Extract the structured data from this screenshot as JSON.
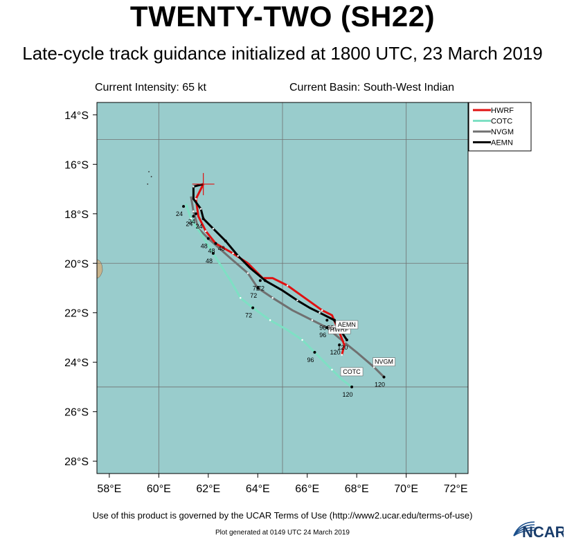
{
  "title": "TWENTY-TWO (SH22)",
  "subtitle": "Late-cycle track guidance initialized at 1800 UTC, 23 March 2019",
  "intensity_text": "Current Intensity: 65 kt",
  "basin_text": "Current Basin: South-West Indian",
  "footer_text": "Use of this product is governed by the UCAR Terms of Use (http://www2.ucar.edu/terms-of-use)",
  "generated_text": "Plot generated at 0149 UTC  24 March 2019",
  "logo_text": "NCAR",
  "colors": {
    "ocean": "#99cccc",
    "land": "#c8b48c",
    "grid": "#707070"
  },
  "chart_data": {
    "type": "line",
    "xaxis": {
      "ticks": [
        "58°E",
        "60°E",
        "62°E",
        "64°E",
        "66°E",
        "68°E",
        "70°E",
        "72°E"
      ]
    },
    "yaxis": {
      "ticks": [
        "14°S",
        "16°S",
        "18°S",
        "20°S",
        "22°S",
        "24°S",
        "26°S",
        "28°S"
      ]
    },
    "legend_position": "top-right",
    "current_position": {
      "lon": 61.8,
      "lat": -16.8
    },
    "series": [
      {
        "name": "HWRF",
        "color": "#e01010",
        "points": [
          [
            61.8,
            -16.8
          ],
          [
            61.5,
            -17.4
          ],
          [
            61.6,
            -18.1
          ],
          [
            61.9,
            -18.7
          ],
          [
            62.3,
            -19.2
          ],
          [
            63.0,
            -19.6
          ],
          [
            63.6,
            -20.0
          ],
          [
            64.2,
            -20.6
          ],
          [
            64.6,
            -20.6
          ],
          [
            65.2,
            -20.9
          ],
          [
            65.9,
            -21.4
          ],
          [
            66.6,
            -21.9
          ],
          [
            67.0,
            -22.1
          ],
          [
            67.3,
            -22.8
          ],
          [
            67.5,
            -23.3
          ],
          [
            67.4,
            -23.7
          ]
        ],
        "labels": [
          {
            "text": "24",
            "lon": 61.4,
            "lat": -18.1
          },
          {
            "text": "48",
            "lon": 62.3,
            "lat": -19.2
          },
          {
            "text": "72",
            "lon": 64.1,
            "lat": -20.7
          },
          {
            "text": "96",
            "lon": 66.8,
            "lat": -22.3
          },
          {
            "text": "120",
            "lon": 67.3,
            "lat": -23.3
          }
        ],
        "end_label": "HWRF"
      },
      {
        "name": "COTC",
        "color": "#7ee0c4",
        "points": [
          [
            61.1,
            -17.6
          ],
          [
            61.3,
            -18.2
          ],
          [
            61.7,
            -18.8
          ],
          [
            62.2,
            -19.6
          ],
          [
            62.9,
            -20.7
          ],
          [
            63.3,
            -21.4
          ],
          [
            63.8,
            -21.8
          ],
          [
            64.5,
            -22.3
          ],
          [
            65.2,
            -22.7
          ],
          [
            65.8,
            -23.1
          ],
          [
            66.3,
            -23.6
          ],
          [
            67.0,
            -24.3
          ],
          [
            67.4,
            -24.7
          ],
          [
            67.8,
            -25.0
          ]
        ],
        "labels": [
          {
            "text": "24",
            "lon": 61.0,
            "lat": -17.7
          },
          {
            "text": "48",
            "lon": 62.2,
            "lat": -19.6
          },
          {
            "text": "72",
            "lon": 63.8,
            "lat": -21.8
          },
          {
            "text": "96",
            "lon": 66.3,
            "lat": -23.6
          },
          {
            "text": "120",
            "lon": 67.8,
            "lat": -25.0
          }
        ],
        "end_label": "COTC"
      },
      {
        "name": "NVGM",
        "color": "#707070",
        "points": [
          [
            61.3,
            -17.3
          ],
          [
            61.4,
            -17.9
          ],
          [
            61.6,
            -18.6
          ],
          [
            62.0,
            -19.0
          ],
          [
            62.9,
            -19.8
          ],
          [
            63.6,
            -20.4
          ],
          [
            64.0,
            -21.0
          ],
          [
            64.6,
            -21.4
          ],
          [
            65.4,
            -21.9
          ],
          [
            66.2,
            -22.3
          ],
          [
            66.8,
            -22.6
          ],
          [
            67.5,
            -23.2
          ],
          [
            68.0,
            -23.6
          ],
          [
            68.7,
            -24.2
          ],
          [
            69.1,
            -24.6
          ]
        ],
        "labels": [
          {
            "text": "24",
            "lon": 61.5,
            "lat": -18.0
          },
          {
            "text": "48",
            "lon": 62.0,
            "lat": -19.0
          },
          {
            "text": "72",
            "lon": 64.0,
            "lat": -21.0
          },
          {
            "text": "96",
            "lon": 66.8,
            "lat": -22.6
          },
          {
            "text": "120",
            "lon": 69.1,
            "lat": -24.6
          }
        ],
        "end_label": "NVGM"
      },
      {
        "name": "AEMN",
        "color": "#000000",
        "points": [
          [
            61.8,
            -16.8
          ],
          [
            61.4,
            -16.9
          ],
          [
            61.4,
            -17.4
          ],
          [
            61.7,
            -17.8
          ],
          [
            61.8,
            -18.2
          ],
          [
            62.2,
            -18.6
          ],
          [
            62.7,
            -19.1
          ],
          [
            63.2,
            -19.7
          ],
          [
            63.7,
            -20.2
          ],
          [
            64.3,
            -20.7
          ],
          [
            65.0,
            -21.1
          ],
          [
            65.6,
            -21.5
          ],
          [
            66.1,
            -21.8
          ],
          [
            66.5,
            -22.0
          ],
          [
            67.1,
            -22.3
          ],
          [
            67.4,
            -22.8
          ],
          [
            67.6,
            -23.1
          ]
        ],
        "labels": [
          {
            "text": "24",
            "lon": 61.8,
            "lat": -18.2
          },
          {
            "text": "48",
            "lon": 62.7,
            "lat": -19.1
          },
          {
            "text": "72",
            "lon": 64.3,
            "lat": -20.7
          },
          {
            "text": "96",
            "lon": 67.1,
            "lat": -22.3
          },
          {
            "text": "120",
            "lon": 67.6,
            "lat": -23.1
          }
        ],
        "end_label": "AEMN"
      }
    ]
  }
}
